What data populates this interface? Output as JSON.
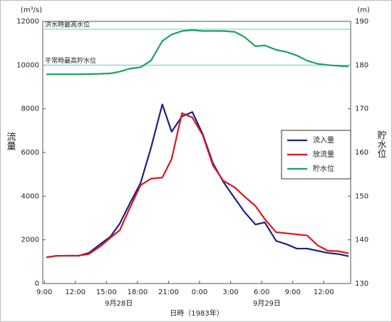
{
  "chart_data": {
    "type": "line",
    "y_unit": "(m³/s)",
    "y2_unit": "(m)",
    "ylabel": "流量",
    "y2label": "貯水位",
    "xlabel": "日時（1983年）",
    "date_labels": [
      {
        "value": 7.2,
        "label": "9月28日"
      },
      {
        "value": 21.5,
        "label": "9月29日"
      }
    ],
    "xlim": [
      -0.15,
      29.6
    ],
    "xticks": [
      {
        "value": 0,
        "label": "9:00"
      },
      {
        "value": 3,
        "label": "12:00"
      },
      {
        "value": 6,
        "label": "15:00"
      },
      {
        "value": 9,
        "label": "18:00"
      },
      {
        "value": 12,
        "label": "21:00"
      },
      {
        "value": 15,
        "label": "0:00"
      },
      {
        "value": 18,
        "label": "3:00"
      },
      {
        "value": 21,
        "label": "6:00"
      },
      {
        "value": 24,
        "label": "9:00"
      },
      {
        "value": 27,
        "label": "12:00"
      }
    ],
    "ylim": [
      0,
      12000
    ],
    "yticks": [
      0,
      2000,
      4000,
      6000,
      8000,
      10000,
      12000
    ],
    "y2lim": [
      130,
      190
    ],
    "y2ticks": [
      130,
      140,
      150,
      160,
      170,
      180,
      190
    ],
    "reference_lines": [
      {
        "label": "洪水時最高水位",
        "value": 188.2,
        "axis": "y2"
      },
      {
        "label": "平常時最高貯水位",
        "value": 180,
        "axis": "y2"
      }
    ],
    "legend": "right",
    "series": [
      {
        "name": "流入量",
        "color": "#1a237e",
        "x": [
          0.2,
          1.2,
          3.3,
          4.3,
          5.4,
          6.4,
          7.3,
          8.3,
          9.3,
          10.3,
          11.4,
          12.3,
          13.3,
          14.3,
          15.3,
          16.3,
          17.3,
          18.4,
          19.3,
          20.4,
          21.3,
          22.4,
          23.4,
          24.4,
          25.4,
          26.4,
          27.4,
          28.4,
          29.4
        ],
        "values": [
          1200,
          1270,
          1270,
          1400,
          1800,
          2150,
          2750,
          3700,
          4600,
          6200,
          8200,
          6950,
          7650,
          7850,
          6850,
          5500,
          4650,
          3900,
          3300,
          2700,
          2800,
          1950,
          1800,
          1600,
          1600,
          1500,
          1400,
          1350,
          1250
        ]
      },
      {
        "name": "放流量",
        "color": "#e0141e",
        "x": [
          0.2,
          1.2,
          3.3,
          4.3,
          5.4,
          6.4,
          7.3,
          8.3,
          9.3,
          10.3,
          11.4,
          12.3,
          13.3,
          14.3,
          15.3,
          16.3,
          17.3,
          18.4,
          19.3,
          20.4,
          21.3,
          22.4,
          23.4,
          24.4,
          25.4,
          26.4,
          27.4,
          28.4,
          29.4
        ],
        "values": [
          1200,
          1270,
          1280,
          1350,
          1700,
          2100,
          2450,
          3500,
          4500,
          4800,
          4850,
          5700,
          7800,
          7600,
          6800,
          5400,
          4700,
          4400,
          4000,
          3550,
          2950,
          2350,
          2300,
          2250,
          2200,
          1750,
          1500,
          1480,
          1380
        ]
      },
      {
        "name": "貯水位",
        "color": "#1aa360",
        "axis": "y2",
        "x": [
          0.2,
          3.3,
          5.4,
          6.4,
          7.3,
          8.3,
          9.3,
          10.3,
          11.4,
          12.3,
          13.3,
          14.3,
          15.3,
          16.3,
          17.3,
          18.4,
          19.3,
          20.4,
          21.3,
          22.4,
          23.4,
          24.4,
          25.4,
          26.4,
          27.4,
          28.4,
          29.4
        ],
        "values": [
          177.9,
          177.9,
          178.0,
          178.1,
          178.5,
          179.2,
          179.5,
          181,
          185.5,
          187,
          187.8,
          188,
          187.8,
          187.8,
          187.8,
          187.6,
          186.5,
          184.3,
          184.5,
          183.5,
          183,
          182.2,
          181,
          180.3,
          180,
          179.8,
          179.7
        ]
      }
    ]
  }
}
